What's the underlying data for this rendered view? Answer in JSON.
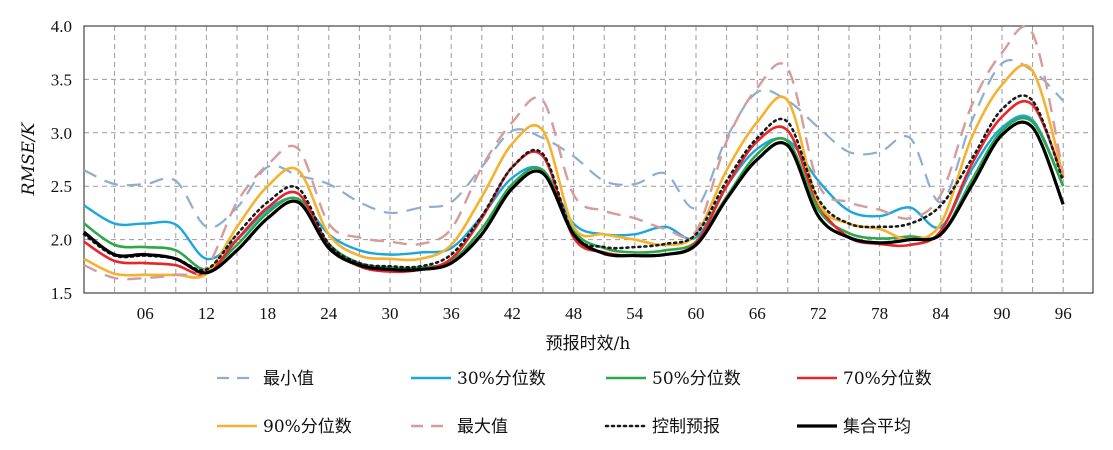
{
  "chart_data": {
    "type": "line",
    "title": "",
    "xlabel": "预报时效/h",
    "ylabel": "RMSE/K",
    "xlim": [
      0,
      96
    ],
    "ylim": [
      1.5,
      4.0
    ],
    "xticks": [
      6,
      12,
      18,
      24,
      30,
      36,
      42,
      48,
      54,
      60,
      66,
      72,
      78,
      84,
      90,
      96
    ],
    "xtick_labels": [
      "06",
      "12",
      "18",
      "24",
      "30",
      "36",
      "42",
      "48",
      "54",
      "60",
      "66",
      "72",
      "78",
      "84",
      "90",
      "96"
    ],
    "yticks": [
      1.5,
      2.0,
      2.5,
      3.0,
      3.5,
      4.0
    ],
    "ytick_labels": [
      "1.5",
      "2.0",
      "2.5",
      "3.0",
      "3.5",
      "4.0"
    ],
    "grid": true,
    "x": [
      0,
      3,
      6,
      9,
      12,
      15,
      18,
      21,
      24,
      27,
      30,
      33,
      36,
      39,
      42,
      45,
      48,
      51,
      54,
      57,
      60,
      63,
      66,
      69,
      72,
      75,
      78,
      81,
      84,
      87,
      90,
      93,
      96
    ],
    "series": [
      {
        "name": "最小值",
        "color": "#8eaed0",
        "dash": "long-dash",
        "width": 2.2,
        "values": [
          2.65,
          2.52,
          2.52,
          2.55,
          2.12,
          2.3,
          2.68,
          2.6,
          2.52,
          2.35,
          2.25,
          2.3,
          2.35,
          2.68,
          3.02,
          2.95,
          2.78,
          2.55,
          2.52,
          2.62,
          2.3,
          2.95,
          3.38,
          3.3,
          3.05,
          2.82,
          2.82,
          2.95,
          2.35,
          3.1,
          3.65,
          3.58,
          3.3
        ]
      },
      {
        "name": "30%分位数",
        "color": "#1aa7dd",
        "dash": "solid",
        "width": 2.4,
        "values": [
          2.32,
          2.15,
          2.15,
          2.14,
          1.82,
          2.0,
          2.28,
          2.38,
          2.05,
          1.9,
          1.86,
          1.88,
          1.92,
          2.22,
          2.58,
          2.65,
          2.15,
          2.05,
          2.05,
          2.12,
          2.02,
          2.5,
          2.85,
          2.93,
          2.55,
          2.27,
          2.22,
          2.3,
          2.12,
          2.65,
          3.05,
          3.12,
          2.5
        ]
      },
      {
        "name": "50%分位数",
        "color": "#2ca84a",
        "dash": "solid",
        "width": 2.6,
        "values": [
          2.15,
          1.95,
          1.93,
          1.9,
          1.72,
          1.95,
          2.25,
          2.38,
          1.96,
          1.78,
          1.74,
          1.74,
          1.8,
          2.1,
          2.52,
          2.65,
          2.08,
          1.92,
          1.88,
          1.9,
          1.98,
          2.4,
          2.8,
          2.92,
          2.28,
          2.06,
          2.01,
          2.03,
          2.05,
          2.55,
          3.02,
          3.1,
          2.5
        ]
      },
      {
        "name": "70%分位数",
        "color": "#e8262a",
        "dash": "solid",
        "width": 2.6,
        "values": [
          1.98,
          1.8,
          1.78,
          1.76,
          1.68,
          2.0,
          2.3,
          2.43,
          1.94,
          1.75,
          1.7,
          1.72,
          1.82,
          2.2,
          2.68,
          2.78,
          2.02,
          1.88,
          1.85,
          1.86,
          1.97,
          2.5,
          2.92,
          3.02,
          2.33,
          2.02,
          1.96,
          1.95,
          2.08,
          2.7,
          3.15,
          3.26,
          2.58
        ]
      },
      {
        "name": "90%分位数",
        "color": "#f4b22e",
        "dash": "solid",
        "width": 2.6,
        "values": [
          1.82,
          1.68,
          1.67,
          1.67,
          1.68,
          2.12,
          2.5,
          2.65,
          2.05,
          1.85,
          1.82,
          1.82,
          1.95,
          2.4,
          2.9,
          3.02,
          2.12,
          2.05,
          2.0,
          1.95,
          2.05,
          2.65,
          3.1,
          3.3,
          2.35,
          2.15,
          2.1,
          2.0,
          2.15,
          2.95,
          3.45,
          3.58,
          2.6
        ]
      },
      {
        "name": "最大值",
        "color": "#d69b9b",
        "dash": "long-dash",
        "width": 2.4,
        "values": [
          1.76,
          1.64,
          1.64,
          1.67,
          1.74,
          2.35,
          2.7,
          2.85,
          2.15,
          2.02,
          1.98,
          1.96,
          2.1,
          2.68,
          3.1,
          3.3,
          2.42,
          2.27,
          2.2,
          2.1,
          2.08,
          2.92,
          3.42,
          3.6,
          2.52,
          2.35,
          2.28,
          2.2,
          2.42,
          3.25,
          3.75,
          3.93,
          2.62
        ]
      },
      {
        "name": "控制预报",
        "color": "#1a1a1a",
        "dash": "dot",
        "width": 2.6,
        "values": [
          2.05,
          1.85,
          1.85,
          1.82,
          1.72,
          2.05,
          2.35,
          2.48,
          1.96,
          1.78,
          1.75,
          1.75,
          1.86,
          2.22,
          2.68,
          2.8,
          2.05,
          1.93,
          1.93,
          1.96,
          2.05,
          2.55,
          2.95,
          3.1,
          2.38,
          2.15,
          2.12,
          2.15,
          2.32,
          2.75,
          3.22,
          3.3,
          2.55
        ]
      },
      {
        "name": "集合平均",
        "color": "#000000",
        "dash": "solid",
        "width": 3.2,
        "values": [
          2.07,
          1.86,
          1.86,
          1.82,
          1.69,
          1.9,
          2.2,
          2.35,
          1.92,
          1.76,
          1.72,
          1.72,
          1.78,
          2.05,
          2.48,
          2.62,
          2.05,
          1.87,
          1.85,
          1.86,
          1.95,
          2.38,
          2.75,
          2.88,
          2.22,
          2.02,
          1.97,
          2.0,
          2.05,
          2.5,
          2.98,
          3.05,
          2.33
        ]
      }
    ],
    "legend_placement": "bottom"
  }
}
